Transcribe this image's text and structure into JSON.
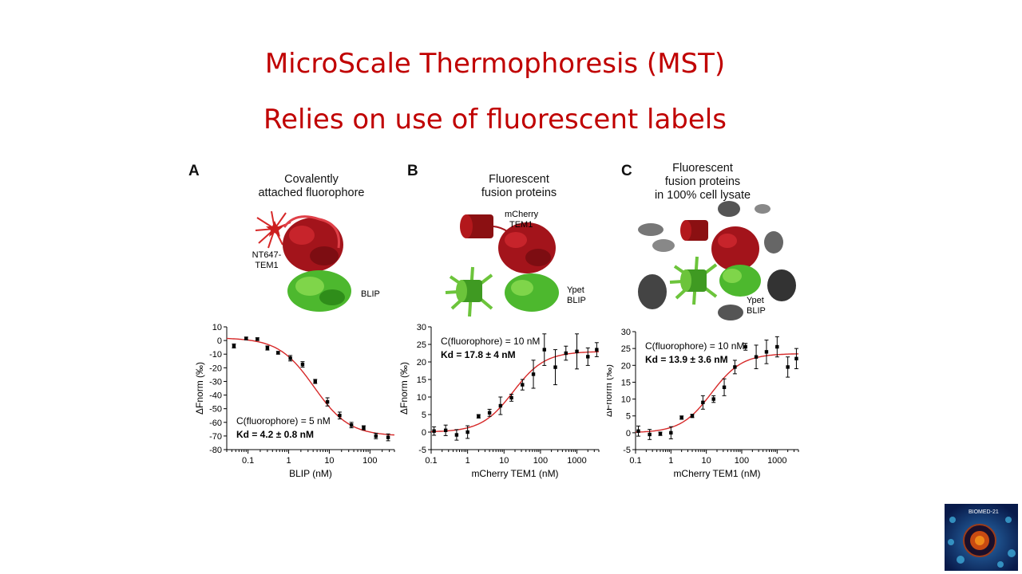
{
  "slide": {
    "title1": "MicroScale Thermophoresis (MST)",
    "title2": "Relies on use of fluorescent labels"
  },
  "panels": [
    {
      "letter": "A",
      "caption": [
        "Covalently",
        "attached fluorophore"
      ],
      "labels": {
        "fluor": "NT647-\nTEM1",
        "partner": "BLIP"
      }
    },
    {
      "letter": "B",
      "caption": [
        "Fluorescent",
        "fusion proteins"
      ],
      "labels": {
        "fluor": "mCherry\nTEM1",
        "partner": "Ypet\nBLIP"
      }
    },
    {
      "letter": "C",
      "caption": [
        "Fluorescent",
        "fusion proteins",
        "in 100% cell lysate"
      ],
      "labels": {
        "partner": "Ypet\nBLIP"
      }
    }
  ],
  "logo": {
    "text": "BIOMED-21"
  },
  "chart_data": [
    {
      "type": "scatter",
      "xlabel": "BLIP (nM)",
      "ylabel": "ΔFnorm (‰)",
      "xscale": "log",
      "xlim": [
        0.03,
        400
      ],
      "ylim": [
        -80,
        10
      ],
      "xticks": [
        0.1,
        1,
        10,
        100
      ],
      "xticklabels": [
        "0.1",
        "1",
        "10",
        "100"
      ],
      "yticks": [
        10,
        0,
        -10,
        -20,
        -30,
        -40,
        -50,
        -60,
        -70,
        -80
      ],
      "yticklabels": [
        "10",
        "0",
        "-10",
        "-20",
        "-30",
        "-40",
        "-50",
        "-60",
        "-70",
        "-80"
      ],
      "annotation_c": "C(fluorophore) = 5 nM",
      "annotation_kd": "Kd = 4.2 ± 0.8 nM",
      "annotation_pos": "bottom-left",
      "points": [
        {
          "x": 0.045,
          "y": -4,
          "err": 1.5
        },
        {
          "x": 0.09,
          "y": 1.5,
          "err": 1
        },
        {
          "x": 0.17,
          "y": 1,
          "err": 1
        },
        {
          "x": 0.3,
          "y": -5.5,
          "err": 1.5
        },
        {
          "x": 0.55,
          "y": -9,
          "err": 1
        },
        {
          "x": 1.1,
          "y": -13,
          "err": 2
        },
        {
          "x": 2.2,
          "y": -17.5,
          "err": 2
        },
        {
          "x": 4.5,
          "y": -30,
          "err": 1.5
        },
        {
          "x": 9,
          "y": -45,
          "err": 3
        },
        {
          "x": 18,
          "y": -55,
          "err": 2.5
        },
        {
          "x": 35,
          "y": -62,
          "err": 2
        },
        {
          "x": 70,
          "y": -64,
          "err": 1.5
        },
        {
          "x": 140,
          "y": -70,
          "err": 2
        },
        {
          "x": 280,
          "y": -71,
          "err": 2.5
        }
      ],
      "fit": {
        "top": 2,
        "bottom": -70,
        "kd": 4.2
      },
      "fit_color": "#d62828"
    },
    {
      "type": "scatter",
      "xlabel": "mCherry TEM1 (nM)",
      "ylabel": "ΔFnorm (‰)",
      "xscale": "log",
      "xlim": [
        0.1,
        4000
      ],
      "ylim": [
        -5,
        30
      ],
      "xticks": [
        0.1,
        1,
        10,
        100,
        1000
      ],
      "xticklabels": [
        "0.1",
        "1",
        "10",
        "100",
        "1000"
      ],
      "yticks": [
        -5,
        0,
        5,
        10,
        15,
        20,
        25,
        30
      ],
      "yticklabels": [
        "-5",
        "0",
        "5",
        "10",
        "15",
        "20",
        "25",
        "30"
      ],
      "annotation_c": "C(fluorophore) = 10 nM",
      "annotation_kd": "Kd = 17.8 ± 4 nM",
      "annotation_pos": "top-left",
      "points": [
        {
          "x": 0.12,
          "y": 0.3,
          "err": 1.2
        },
        {
          "x": 0.25,
          "y": 0.5,
          "err": 1.5
        },
        {
          "x": 0.5,
          "y": -0.8,
          "err": 1.5
        },
        {
          "x": 1,
          "y": 0,
          "err": 1.8
        },
        {
          "x": 2,
          "y": 4.5,
          "err": 0.5
        },
        {
          "x": 4,
          "y": 5.5,
          "err": 1
        },
        {
          "x": 8,
          "y": 7.5,
          "err": 2.5
        },
        {
          "x": 16,
          "y": 9.8,
          "err": 1
        },
        {
          "x": 32,
          "y": 13.5,
          "err": 1.5
        },
        {
          "x": 64,
          "y": 16.5,
          "err": 4
        },
        {
          "x": 128,
          "y": 23.5,
          "err": 4.5
        },
        {
          "x": 256,
          "y": 18.5,
          "err": 5
        },
        {
          "x": 500,
          "y": 22.5,
          "err": 2
        },
        {
          "x": 1000,
          "y": 23,
          "err": 5
        },
        {
          "x": 2000,
          "y": 21.5,
          "err": 2.5
        },
        {
          "x": 3500,
          "y": 23.5,
          "err": 2
        }
      ],
      "fit": {
        "top": 23,
        "bottom": 0,
        "kd": 17.8
      },
      "fit_color": "#d62828"
    },
    {
      "type": "scatter",
      "xlabel": "mCherry TEM1 (nM)",
      "ylabel": "ΔFnorm (‰)",
      "xscale": "log",
      "xlim": [
        0.1,
        4000
      ],
      "ylim": [
        -5,
        30
      ],
      "xticks": [
        0.1,
        1,
        10,
        100,
        1000
      ],
      "xticklabels": [
        "0.1",
        "1",
        "10",
        "100",
        "1000"
      ],
      "yticks": [
        -5,
        0,
        5,
        10,
        15,
        20,
        25,
        30
      ],
      "yticklabels": [
        "-5",
        "0",
        "5",
        "10",
        "15",
        "20",
        "25",
        "30"
      ],
      "annotation_c": "C(fluorophore) = 10 nM",
      "annotation_kd": "Kd = 13.9 ± 3.6 nM",
      "annotation_pos": "top-left",
      "points": [
        {
          "x": 0.12,
          "y": 0.5,
          "err": 1.5
        },
        {
          "x": 0.25,
          "y": -0.5,
          "err": 1.5
        },
        {
          "x": 0.5,
          "y": -0.3,
          "err": 0.5
        },
        {
          "x": 1,
          "y": 0,
          "err": 1.8
        },
        {
          "x": 2,
          "y": 4.5,
          "err": 0.5
        },
        {
          "x": 4,
          "y": 5,
          "err": 0.5
        },
        {
          "x": 8,
          "y": 9,
          "err": 2
        },
        {
          "x": 16,
          "y": 10,
          "err": 1
        },
        {
          "x": 32,
          "y": 13.5,
          "err": 2.5
        },
        {
          "x": 64,
          "y": 19.5,
          "err": 2
        },
        {
          "x": 128,
          "y": 25.5,
          "err": 1
        },
        {
          "x": 256,
          "y": 22.5,
          "err": 3.5
        },
        {
          "x": 500,
          "y": 24,
          "err": 3.5
        },
        {
          "x": 1000,
          "y": 25.5,
          "err": 3
        },
        {
          "x": 2000,
          "y": 19.5,
          "err": 3
        },
        {
          "x": 3500,
          "y": 22,
          "err": 3
        }
      ],
      "fit": {
        "top": 23.5,
        "bottom": 0,
        "kd": 13.9
      },
      "fit_color": "#d62828"
    }
  ]
}
